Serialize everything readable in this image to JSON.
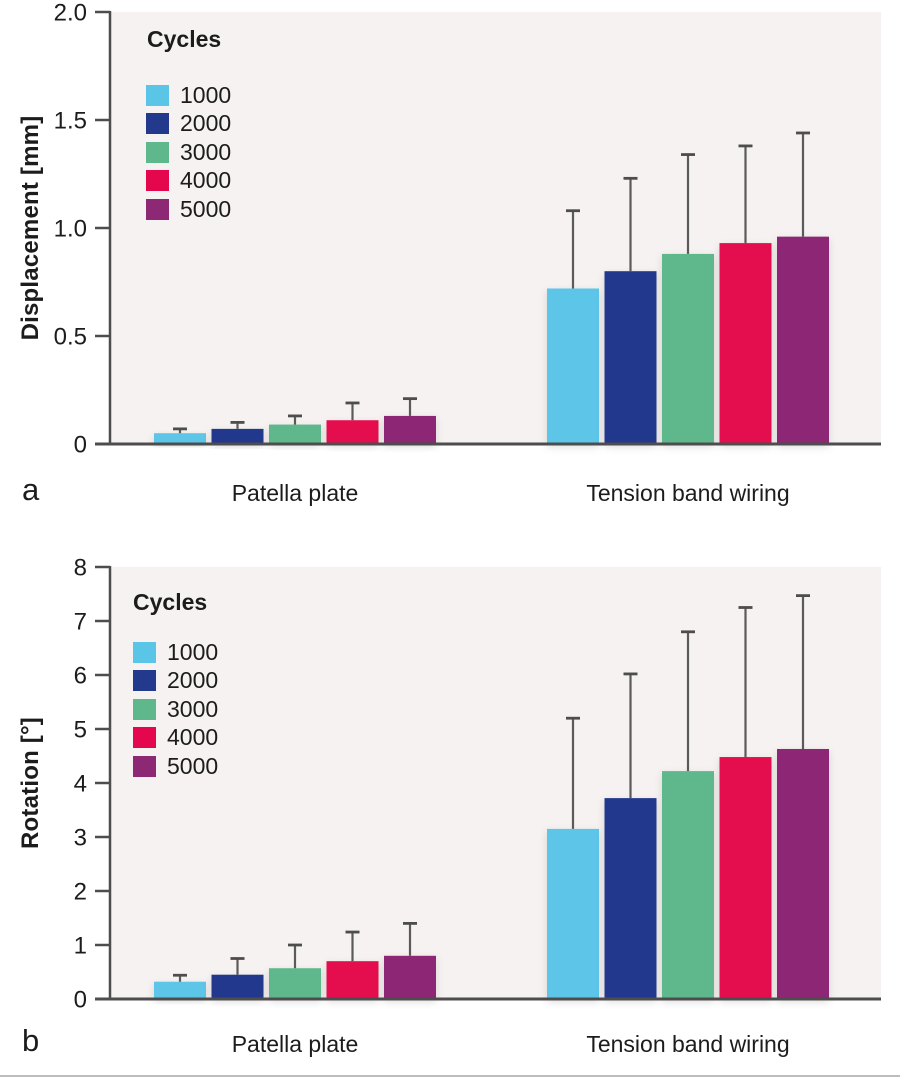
{
  "figure": {
    "background": "#ffffff",
    "plot_background": "#f6f2f1",
    "axis_color": "#4d4d4d",
    "error_bar_color": "#5a5a5a",
    "text_color": "#1c1c1c",
    "divider_color": "#bdbdbd"
  },
  "chart_data": [
    {
      "type": "bar",
      "panel_label": "a",
      "title": "",
      "xlabel": "",
      "ylabel": "Displacement [mm]",
      "ylim": [
        0,
        2.0
      ],
      "yticks": [
        {
          "value": 0,
          "label": "0"
        },
        {
          "value": 0.5,
          "label": "0.5"
        },
        {
          "value": 1.0,
          "label": "1.0"
        },
        {
          "value": 1.5,
          "label": "1.5"
        },
        {
          "value": 2.0,
          "label": "2.0"
        }
      ],
      "categories": [
        "Patella plate",
        "Tension band wiring"
      ],
      "legend_title": "Cycles",
      "legend_position": "top-left inside plot",
      "grid": false,
      "error_bars": "upper only",
      "series": [
        {
          "name": "1000",
          "color": "#5bc5e8",
          "values": [
            0.05,
            0.72
          ],
          "errors_plus": [
            0.02,
            0.36
          ]
        },
        {
          "name": "2000",
          "color": "#22398c",
          "values": [
            0.07,
            0.8
          ],
          "errors_plus": [
            0.03,
            0.43
          ]
        },
        {
          "name": "3000",
          "color": "#5eb88c",
          "values": [
            0.09,
            0.88
          ],
          "errors_plus": [
            0.04,
            0.46
          ]
        },
        {
          "name": "4000",
          "color": "#e4074e",
          "values": [
            0.11,
            0.93
          ],
          "errors_plus": [
            0.08,
            0.45
          ]
        },
        {
          "name": "5000",
          "color": "#8c2874",
          "values": [
            0.13,
            0.96
          ],
          "errors_plus": [
            0.08,
            0.48
          ]
        }
      ]
    },
    {
      "type": "bar",
      "panel_label": "b",
      "title": "",
      "xlabel": "",
      "ylabel": "Rotation [°]",
      "ylim": [
        0,
        8
      ],
      "yticks": [
        {
          "value": 0,
          "label": "0"
        },
        {
          "value": 1,
          "label": "1"
        },
        {
          "value": 2,
          "label": "2"
        },
        {
          "value": 3,
          "label": "3"
        },
        {
          "value": 4,
          "label": "4"
        },
        {
          "value": 5,
          "label": "5"
        },
        {
          "value": 6,
          "label": "6"
        },
        {
          "value": 7,
          "label": "7"
        },
        {
          "value": 8,
          "label": "8"
        }
      ],
      "categories": [
        "Patella plate",
        "Tension band wiring"
      ],
      "legend_title": "Cycles",
      "legend_position": "top-left inside plot",
      "grid": false,
      "error_bars": "upper only",
      "series": [
        {
          "name": "1000",
          "color": "#5bc5e8",
          "values": [
            0.32,
            3.15
          ],
          "errors_plus": [
            0.12,
            2.05
          ]
        },
        {
          "name": "2000",
          "color": "#22398c",
          "values": [
            0.45,
            3.72
          ],
          "errors_plus": [
            0.3,
            2.3
          ]
        },
        {
          "name": "3000",
          "color": "#5eb88c",
          "values": [
            0.57,
            4.22
          ],
          "errors_plus": [
            0.43,
            2.58
          ]
        },
        {
          "name": "4000",
          "color": "#e4074e",
          "values": [
            0.7,
            4.48
          ],
          "errors_plus": [
            0.54,
            2.77
          ]
        },
        {
          "name": "5000",
          "color": "#8c2874",
          "values": [
            0.8,
            4.63
          ],
          "errors_plus": [
            0.6,
            2.84
          ]
        }
      ]
    }
  ]
}
